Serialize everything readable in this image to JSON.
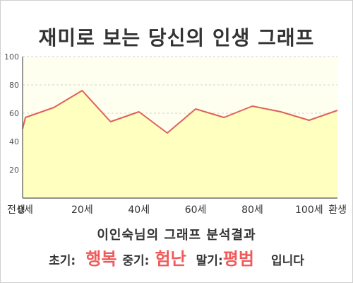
{
  "title": "재미로 보는 당신의 인생 그래프",
  "chart_data": {
    "type": "area",
    "x": [
      -1,
      0,
      10,
      20,
      30,
      40,
      50,
      60,
      70,
      80,
      90,
      100,
      110
    ],
    "values": [
      49,
      57,
      64,
      76,
      54,
      61,
      46,
      63,
      57,
      65,
      61,
      55,
      62
    ],
    "x_tick_labels": [
      {
        "x": -1,
        "label": "전생"
      },
      {
        "x": 0,
        "label": "0세"
      },
      {
        "x": 20,
        "label": "20세"
      },
      {
        "x": 40,
        "label": "40세"
      },
      {
        "x": 60,
        "label": "60세"
      },
      {
        "x": 80,
        "label": "80세"
      },
      {
        "x": 100,
        "label": "100세"
      },
      {
        "x": 110,
        "label": "환생"
      }
    ],
    "y_ticks": [
      20,
      40,
      60,
      80,
      100
    ],
    "ylim": [
      0,
      100
    ],
    "grid": true,
    "line_color": "#e0605a",
    "fill_color": "#ffffc0",
    "plot_bg": "#fffff0"
  },
  "result": {
    "heading": "이인숙님의 그래프 분석결과",
    "early_label": "초기:",
    "early_value": "행복",
    "middle_label": "중기:",
    "middle_value": "험난",
    "late_label": "말기:",
    "late_value": "평범",
    "ending": "입니다",
    "value_color": "#f05a5a"
  }
}
